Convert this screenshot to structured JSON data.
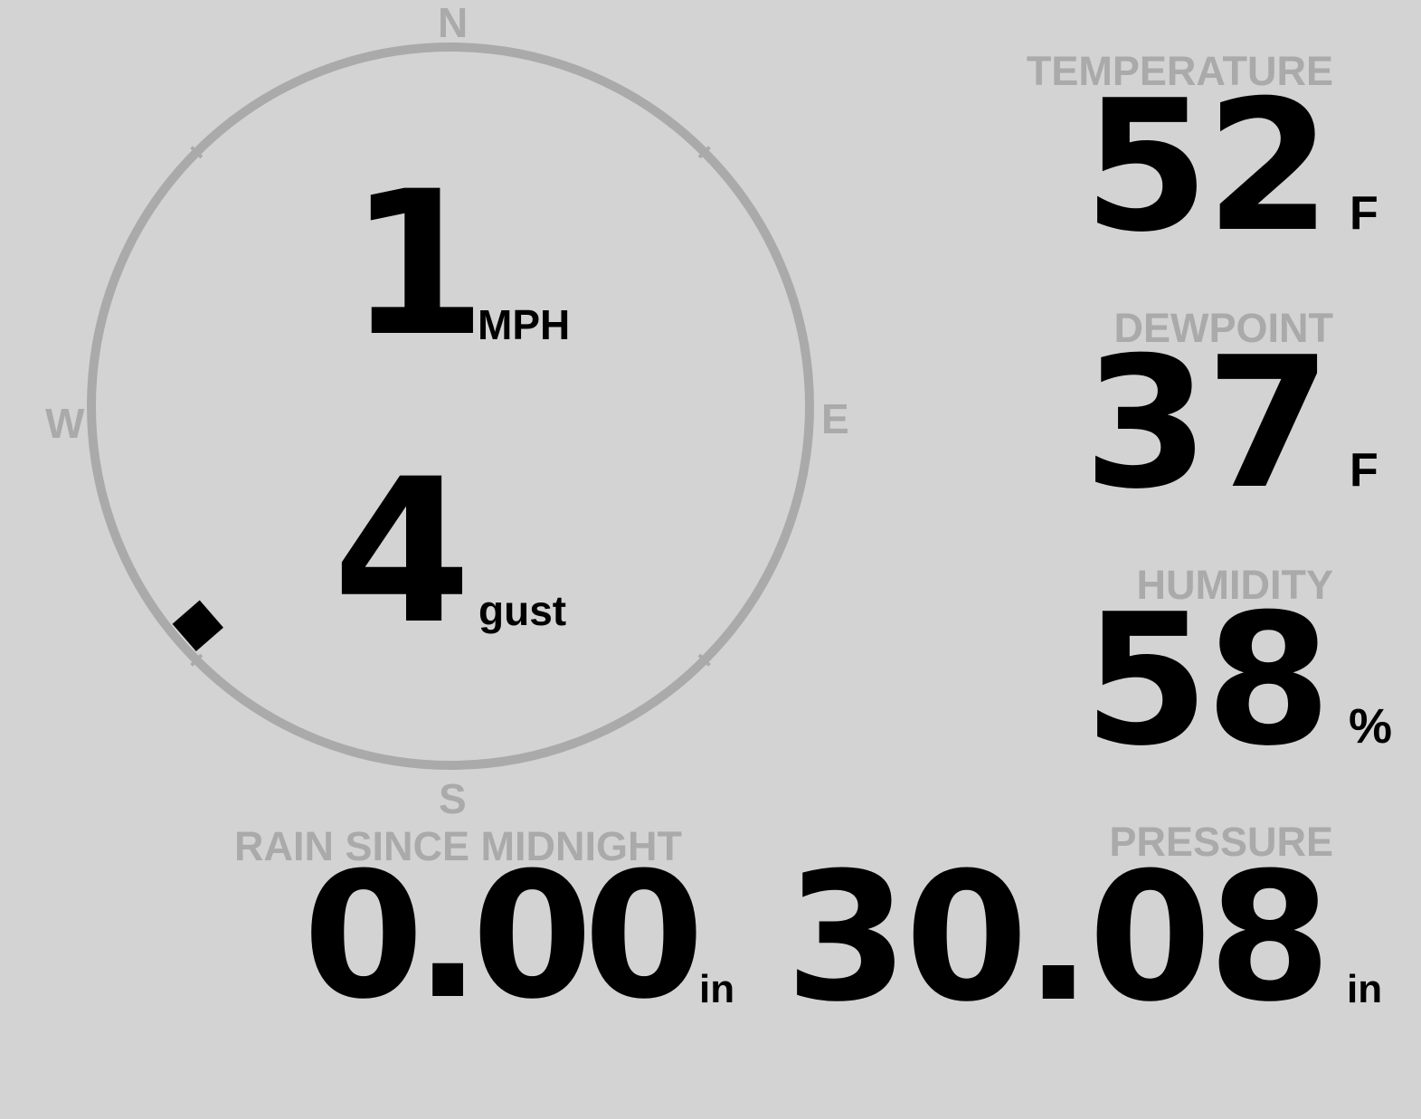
{
  "wind": {
    "speed": "1",
    "speed_unit": "MPH",
    "gust": "4",
    "gust_label": "gust",
    "direction_degrees": 229,
    "compass": {
      "n": "N",
      "e": "E",
      "s": "S",
      "w": "W"
    }
  },
  "temperature": {
    "label": "TEMPERATURE",
    "value": "52",
    "unit": "F"
  },
  "dewpoint": {
    "label": "DEWPOINT",
    "value": "37",
    "unit": "F"
  },
  "humidity": {
    "label": "HUMIDITY",
    "value": "58",
    "unit": "%"
  },
  "rain": {
    "label": "RAIN SINCE MIDNIGHT",
    "value": "0.00",
    "unit": "in"
  },
  "pressure": {
    "label": "PRESSURE",
    "value": "30.08",
    "unit": "in"
  },
  "colors": {
    "background": "#d3d3d3",
    "muted": "#aaaaaa",
    "text": "#000000"
  }
}
